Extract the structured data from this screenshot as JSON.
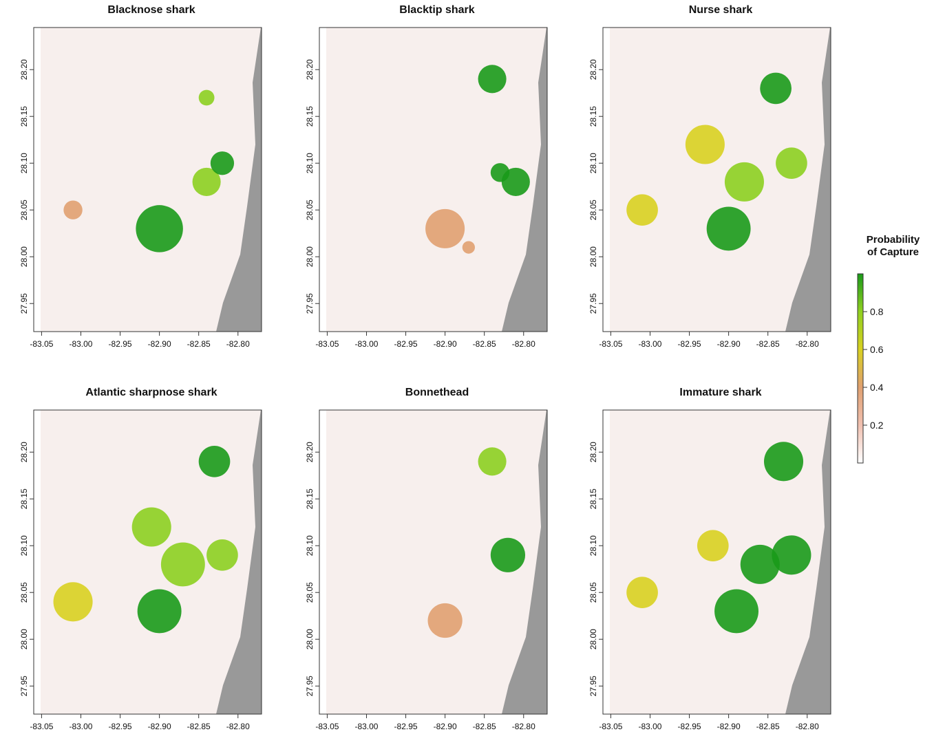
{
  "chart_data": [
    {
      "type": "heatmap",
      "title": "Blacknose shark",
      "x_ticks": [
        "-83.05",
        "-83.00",
        "-82.95",
        "-82.90",
        "-82.85",
        "-82.80"
      ],
      "y_ticks": [
        "27.95",
        "28.00",
        "28.05",
        "28.10",
        "28.15",
        "28.20"
      ],
      "xlim": [
        -83.06,
        -82.77
      ],
      "ylim": [
        27.92,
        28.245
      ],
      "hotspots": [
        {
          "lon": -82.9,
          "lat": 28.03,
          "r": 0.03,
          "p": 0.75
        },
        {
          "lon": -82.84,
          "lat": 28.08,
          "r": 0.018,
          "p": 0.6
        },
        {
          "lon": -82.82,
          "lat": 28.1,
          "r": 0.015,
          "p": 0.75
        },
        {
          "lon": -83.01,
          "lat": 28.05,
          "r": 0.012,
          "p": 0.4
        },
        {
          "lon": -82.84,
          "lat": 28.17,
          "r": 0.01,
          "p": 0.7
        }
      ]
    },
    {
      "type": "heatmap",
      "title": "Blacktip shark",
      "x_ticks": [
        "-83.05",
        "-83.00",
        "-82.95",
        "-82.90",
        "-82.85",
        "-82.80"
      ],
      "y_ticks": [
        "27.95",
        "28.00",
        "28.05",
        "28.10",
        "28.15",
        "28.20"
      ],
      "xlim": [
        -83.06,
        -82.77
      ],
      "ylim": [
        27.92,
        28.245
      ],
      "hotspots": [
        {
          "lon": -82.81,
          "lat": 28.08,
          "r": 0.018,
          "p": 0.9
        },
        {
          "lon": -82.84,
          "lat": 28.19,
          "r": 0.018,
          "p": 0.75
        },
        {
          "lon": -82.83,
          "lat": 28.09,
          "r": 0.012,
          "p": 0.8
        },
        {
          "lon": -82.9,
          "lat": 28.03,
          "r": 0.025,
          "p": 0.3
        },
        {
          "lon": -82.87,
          "lat": 28.01,
          "r": 0.008,
          "p": 0.4
        }
      ]
    },
    {
      "type": "heatmap",
      "title": "Nurse shark",
      "x_ticks": [
        "-83.05",
        "-83.00",
        "-82.95",
        "-82.90",
        "-82.85",
        "-82.80"
      ],
      "y_ticks": [
        "27.95",
        "28.00",
        "28.05",
        "28.10",
        "28.15",
        "28.20"
      ],
      "xlim": [
        -83.06,
        -82.77
      ],
      "ylim": [
        27.92,
        28.245
      ],
      "hotspots": [
        {
          "lon": -82.9,
          "lat": 28.03,
          "r": 0.028,
          "p": 0.8
        },
        {
          "lon": -82.88,
          "lat": 28.08,
          "r": 0.025,
          "p": 0.6
        },
        {
          "lon": -82.82,
          "lat": 28.1,
          "r": 0.02,
          "p": 0.7
        },
        {
          "lon": -82.84,
          "lat": 28.18,
          "r": 0.02,
          "p": 0.75
        },
        {
          "lon": -83.01,
          "lat": 28.05,
          "r": 0.02,
          "p": 0.45
        },
        {
          "lon": -82.93,
          "lat": 28.12,
          "r": 0.025,
          "p": 0.5
        }
      ]
    },
    {
      "type": "heatmap",
      "title": "Atlantic sharpnose shark",
      "x_ticks": [
        "-83.05",
        "-83.00",
        "-82.95",
        "-82.90",
        "-82.85",
        "-82.80"
      ],
      "y_ticks": [
        "27.95",
        "28.00",
        "28.05",
        "28.10",
        "28.15",
        "28.20"
      ],
      "xlim": [
        -83.06,
        -82.77
      ],
      "ylim": [
        27.92,
        28.245
      ],
      "hotspots": [
        {
          "lon": -82.9,
          "lat": 28.03,
          "r": 0.028,
          "p": 0.85
        },
        {
          "lon": -82.87,
          "lat": 28.08,
          "r": 0.028,
          "p": 0.7
        },
        {
          "lon": -82.82,
          "lat": 28.09,
          "r": 0.02,
          "p": 0.7
        },
        {
          "lon": -82.83,
          "lat": 28.19,
          "r": 0.02,
          "p": 0.8
        },
        {
          "lon": -83.01,
          "lat": 28.04,
          "r": 0.025,
          "p": 0.45
        },
        {
          "lon": -82.91,
          "lat": 28.12,
          "r": 0.025,
          "p": 0.55
        }
      ]
    },
    {
      "type": "heatmap",
      "title": "Bonnethead",
      "x_ticks": [
        "-83.05",
        "-83.00",
        "-82.95",
        "-82.90",
        "-82.85",
        "-82.80"
      ],
      "y_ticks": [
        "27.95",
        "28.00",
        "28.05",
        "28.10",
        "28.15",
        "28.20"
      ],
      "xlim": [
        -83.06,
        -82.77
      ],
      "ylim": [
        27.92,
        28.245
      ],
      "hotspots": [
        {
          "lon": -82.82,
          "lat": 28.09,
          "r": 0.022,
          "p": 0.8
        },
        {
          "lon": -82.84,
          "lat": 28.19,
          "r": 0.018,
          "p": 0.7
        },
        {
          "lon": -82.9,
          "lat": 28.02,
          "r": 0.022,
          "p": 0.3
        }
      ]
    },
    {
      "type": "heatmap",
      "title": "Immature shark",
      "x_ticks": [
        "-83.05",
        "-83.00",
        "-82.95",
        "-82.90",
        "-82.85",
        "-82.80"
      ],
      "y_ticks": [
        "27.95",
        "28.00",
        "28.05",
        "28.10",
        "28.15",
        "28.20"
      ],
      "xlim": [
        -83.06,
        -82.77
      ],
      "ylim": [
        27.92,
        28.245
      ],
      "hotspots": [
        {
          "lon": -82.89,
          "lat": 28.03,
          "r": 0.028,
          "p": 0.8
        },
        {
          "lon": -82.86,
          "lat": 28.08,
          "r": 0.025,
          "p": 0.75
        },
        {
          "lon": -82.82,
          "lat": 28.09,
          "r": 0.025,
          "p": 0.85
        },
        {
          "lon": -82.83,
          "lat": 28.19,
          "r": 0.025,
          "p": 0.85
        },
        {
          "lon": -82.92,
          "lat": 28.1,
          "r": 0.02,
          "p": 0.5
        },
        {
          "lon": -83.01,
          "lat": 28.05,
          "r": 0.02,
          "p": 0.45
        }
      ]
    }
  ],
  "legend": {
    "title_line1": "Probability",
    "title_line2": "of Capture",
    "ticks": [
      "0.8",
      "0.6",
      "0.4",
      "0.2"
    ],
    "tick_values": [
      0.8,
      0.6,
      0.4,
      0.2
    ],
    "range": [
      0,
      1
    ],
    "colors": [
      "#ffffff",
      "#f0c0b0",
      "#e0a070",
      "#d8d020",
      "#90d020",
      "#1a9a1a"
    ]
  },
  "colors": {
    "land": "#999999",
    "background": "#f7efed",
    "axis": "#333333"
  }
}
